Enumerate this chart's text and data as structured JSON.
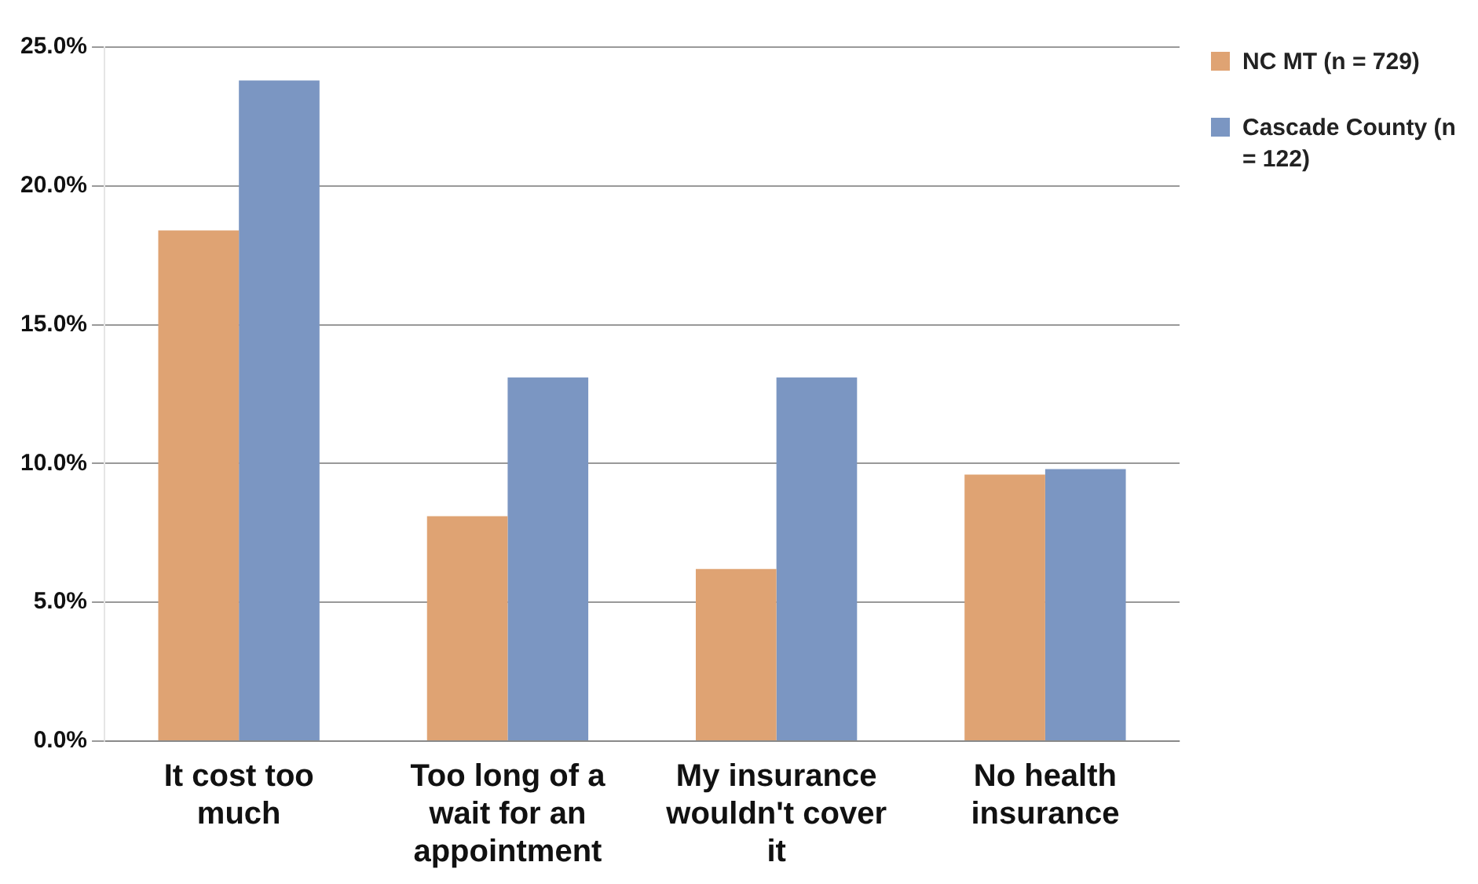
{
  "chart_data": {
    "type": "bar",
    "categories": [
      "It cost too much",
      "Too long of a wait for an appointment",
      "My insurance wouldn't cover it",
      "No health insurance"
    ],
    "series": [
      {
        "name": "NC MT (n = 729)",
        "color": "#dfa373",
        "values": [
          18.4,
          8.1,
          6.2,
          9.6
        ]
      },
      {
        "name": "Cascade County (n = 122)",
        "color": "#7b96c2",
        "values": [
          23.8,
          13.1,
          13.1,
          9.8
        ]
      }
    ],
    "ylim": [
      0,
      25
    ],
    "yticks": [
      {
        "value": 0,
        "label": "0.0%"
      },
      {
        "value": 5,
        "label": "5.0%"
      },
      {
        "value": 10,
        "label": "10.0%"
      },
      {
        "value": 15,
        "label": "15.0%"
      },
      {
        "value": 20,
        "label": "20.0%"
      },
      {
        "value": 25,
        "label": "25.0%"
      }
    ],
    "grid": "y",
    "legend": "right"
  }
}
